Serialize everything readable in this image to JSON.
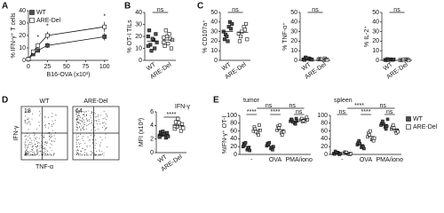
{
  "chart_data": [
    {
      "panel": "A",
      "type": "line",
      "xlabel": "B16-OVA (x10³)",
      "ylabel": "% IFN-γ⁺ T cells",
      "x": [
        0,
        6.25,
        12.5,
        25,
        100
      ],
      "xlim": [
        0,
        105
      ],
      "xticks": [
        0,
        25,
        50,
        75,
        100
      ],
      "ylim": [
        0,
        40
      ],
      "yticks": [
        0,
        10,
        20,
        30,
        40
      ],
      "legend": "upper left",
      "series": [
        {
          "name": "WT",
          "color": "#4d4d4d",
          "values": [
            1,
            5,
            8,
            12,
            19
          ],
          "errors": [
            0.5,
            1,
            1.5,
            2,
            3
          ]
        },
        {
          "name": "ARE-Del",
          "color": "#ffffff",
          "values": [
            1,
            7,
            12,
            20,
            27
          ],
          "errors": [
            0.5,
            1.5,
            2,
            3,
            4
          ]
        }
      ],
      "annotations": [
        "*",
        "*",
        "*"
      ]
    },
    {
      "panel": "B",
      "type": "strip",
      "ylabel": "% OT-I TILs",
      "categories": [
        "WT",
        "ARE-Del"
      ],
      "colors": [
        "#4d4d4d",
        "#ffffff"
      ],
      "values": [
        [
          20,
          17,
          25,
          10,
          13,
          22,
          8,
          15,
          18,
          12
        ],
        [
          15,
          22,
          12,
          18,
          25,
          10,
          20,
          17,
          14,
          19
        ]
      ],
      "means": [
        16,
        17
      ],
      "ylim": [
        0,
        40
      ],
      "yticks": [
        0,
        10,
        20,
        30,
        40
      ],
      "annotation": "ns"
    },
    {
      "panel": "C",
      "type": "strip",
      "ylabel": "% CD107a⁺",
      "categories": [
        "WT",
        "ARE-Del"
      ],
      "colors": [
        "#4d4d4d",
        "#ffffff"
      ],
      "values": [
        [
          30,
          35,
          22,
          40,
          27,
          33,
          25,
          38,
          20
        ],
        [
          28,
          35,
          20,
          32,
          25,
          38,
          30,
          22
        ]
      ],
      "means": [
        30,
        29
      ],
      "ylim": [
        0,
        50
      ],
      "yticks": [
        0,
        10,
        20,
        30,
        40,
        50
      ],
      "annotation": "ns"
    },
    {
      "type": "strip",
      "ylabel": "% TNF-α⁺",
      "categories": [
        "WT",
        "ARE-Del"
      ],
      "colors": [
        "#4d4d4d",
        "#ffffff"
      ],
      "values": [
        [
          1,
          2,
          0.5,
          1.5,
          3,
          1,
          2,
          0.8
        ],
        [
          1,
          0.5,
          1.5,
          2,
          1,
          0.8,
          1.2,
          0.6
        ]
      ],
      "means": [
        1.5,
        1
      ],
      "ylim": [
        0,
        50
      ],
      "yticks": [
        0,
        10,
        20,
        30,
        40,
        50
      ],
      "annotation": "ns"
    },
    {
      "type": "strip",
      "ylabel": "% IL-2⁺",
      "categories": [
        "WT",
        "ARE-Del"
      ],
      "colors": [
        "#4d4d4d",
        "#ffffff"
      ],
      "values": [
        [
          0.5,
          1,
          0.3,
          0.8,
          1.2,
          0.6,
          0.4,
          0.9
        ],
        [
          0.4,
          0.8,
          0.3,
          1,
          0.5,
          0.7,
          0.6,
          0.2
        ]
      ],
      "means": [
        0.7,
        0.6
      ],
      "ylim": [
        0,
        50
      ],
      "yticks": [
        0,
        10,
        20,
        30,
        40,
        50
      ],
      "annotation": "ns"
    },
    {
      "panel": "D",
      "type": "flow",
      "titles": [
        "WT",
        "ARE-Del"
      ],
      "quadrant_values": [
        18,
        64
      ],
      "xlabel": "TNF-α",
      "ylabel": "IFN-γ"
    },
    {
      "type": "strip",
      "title": "IFN-γ",
      "ylabel": "MFI (x10³)",
      "categories": [
        "WT",
        "ARE-Del"
      ],
      "colors": [
        "#4d4d4d",
        "#ffffff"
      ],
      "values": [
        [
          2.5,
          2.8,
          3,
          2.2,
          2.6,
          2.9,
          3.1,
          2.4,
          2.7,
          2.3
        ],
        [
          3.5,
          4,
          4.5,
          3.2,
          3.8,
          4.2,
          5,
          3.6,
          4.4,
          3.9
        ]
      ],
      "means": [
        2.6,
        4
      ],
      "ylim": [
        0,
        6
      ],
      "yticks": [
        0,
        2,
        4,
        6
      ],
      "annotation": "****"
    },
    {
      "panel": "E",
      "type": "grouped-strip",
      "title": "tumor",
      "ylabel": "%IFN-γ⁺ OT-I",
      "categories": [
        "-",
        "OVA",
        "PMA/iono"
      ],
      "ylim": [
        0,
        100
      ],
      "yticks": [
        0,
        20,
        40,
        60,
        80,
        100
      ],
      "series": [
        {
          "name": "WT",
          "color": "#4d4d4d",
          "values": [
            [
              20,
              12,
              28,
              15,
              25,
              18,
              30,
              10
            ],
            [
              22,
              15,
              28,
              18,
              25,
              12,
              30,
              20
            ],
            [
              85,
              80,
              90,
              78,
              88,
              92,
              83,
              86
            ]
          ],
          "means": [
            20,
            21,
            85
          ]
        },
        {
          "name": "ARE-Del",
          "color": "#ffffff",
          "values": [
            [
              60,
              55,
              70,
              50,
              65,
              75,
              58,
              62
            ],
            [
              62,
              55,
              72,
              50,
              68,
              60,
              75,
              58
            ],
            [
              88,
              85,
              92,
              90,
              84,
              95,
              87,
              89
            ]
          ],
          "means": [
            62,
            63,
            89
          ]
        }
      ],
      "annotations": [
        "ns",
        "ns",
        "****",
        "****",
        "ns"
      ]
    },
    {
      "type": "grouped-strip",
      "title": "spleen",
      "categories": [
        "-",
        "OVA",
        "PMA/iono"
      ],
      "ylim": [
        0,
        100
      ],
      "yticks": [
        0,
        20,
        40,
        60,
        80,
        100
      ],
      "legend": "right",
      "series": [
        {
          "name": "WT",
          "color": "#4d4d4d",
          "values": [
            [
              2,
              5,
              1,
              3,
              8,
              0,
              4,
              2
            ],
            [
              25,
              18,
              30,
              22,
              35,
              20,
              28,
              15
            ],
            [
              75,
              70,
              80,
              65,
              85,
              72,
              78,
              90
            ]
          ],
          "means": [
            3,
            24,
            77
          ]
        },
        {
          "name": "ARE-Del",
          "color": "#ffffff",
          "values": [
            [
              3,
              1,
              6,
              2,
              4,
              0,
              5,
              2
            ],
            [
              45,
              38,
              55,
              40,
              50,
              35,
              60,
              42
            ],
            [
              65,
              60,
              70,
              55,
              75,
              62,
              68,
              58
            ]
          ],
          "means": [
            3,
            46,
            64
          ]
        }
      ],
      "annotations": [
        "****",
        "ns",
        "ns",
        "****",
        "ns"
      ]
    }
  ]
}
